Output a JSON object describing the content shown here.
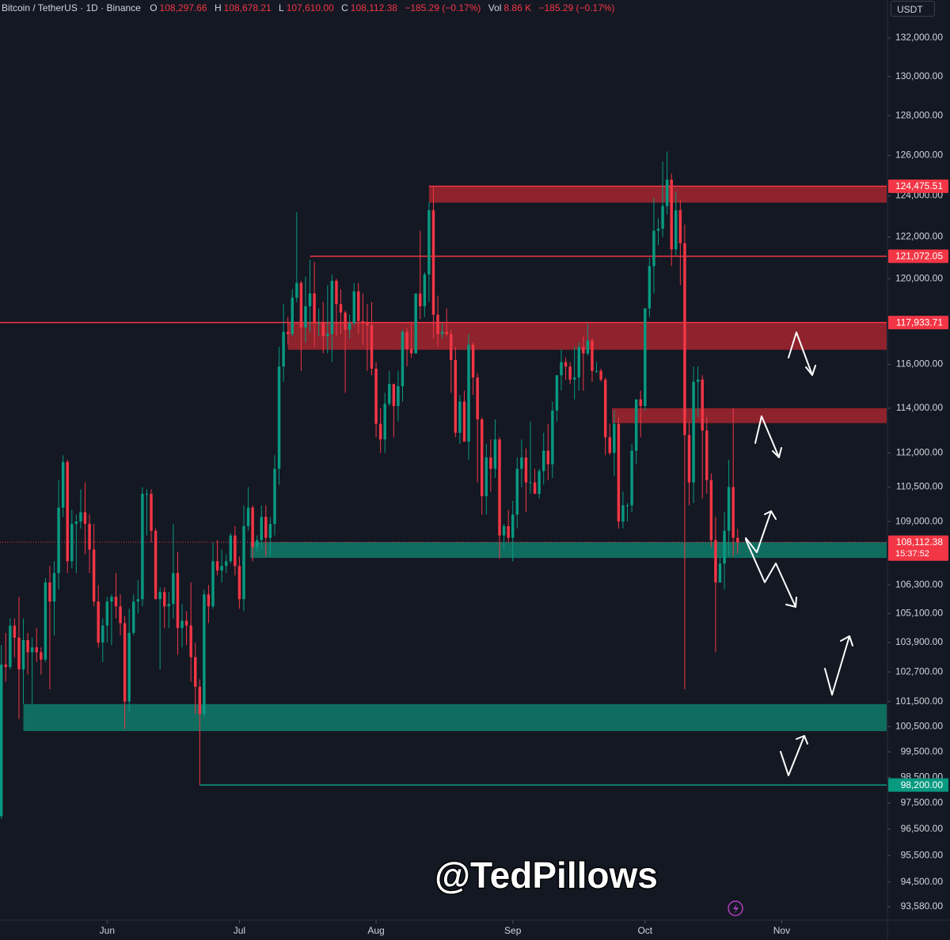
{
  "chart_data": {
    "type": "candlestick",
    "header": {
      "symbol": "Bitcoin / TetherUS · 1D · Binance",
      "fields": [
        {
          "key": "O",
          "value": "108,297.66"
        },
        {
          "key": "H",
          "value": "108,678.21"
        },
        {
          "key": "L",
          "value": "107,610.00"
        },
        {
          "key": "C",
          "value": "108,112.38"
        }
      ],
      "change": "−185.29 (−0.17%)",
      "volume": {
        "key": "Vol",
        "value": "8.86 K",
        "change": "−185.29 (−0.17%)"
      }
    },
    "currency": "USDT",
    "watermark": "@TedPillows",
    "log_scale": true,
    "up_color": "#089981",
    "down_color": "#f23645",
    "ylim": [
      93170,
      134000
    ],
    "xlim": [
      -0.3,
      200.8
    ],
    "xticks": [
      {
        "value": 24,
        "label": "Jun"
      },
      {
        "value": 54,
        "label": "Jul"
      },
      {
        "value": 85,
        "label": "Aug"
      },
      {
        "value": 116,
        "label": "Sep"
      },
      {
        "value": 146,
        "label": "Oct"
      },
      {
        "value": 177,
        "label": "Nov"
      }
    ],
    "yticks": [
      {
        "value": 132000,
        "label": "132,000.00"
      },
      {
        "value": 130000,
        "label": "130,000.00"
      },
      {
        "value": 128000,
        "label": "128,000.00"
      },
      {
        "value": 126000,
        "label": "126,000.00"
      },
      {
        "value": 124000,
        "label": "124,000.00"
      },
      {
        "value": 122000,
        "label": "122,000.00"
      },
      {
        "value": 120000,
        "label": "120,000.00"
      },
      {
        "value": 116000,
        "label": "116,000.00"
      },
      {
        "value": 114000,
        "label": "114,000.00"
      },
      {
        "value": 112000,
        "label": "112,000.00"
      },
      {
        "value": 110500,
        "label": "110,500.00"
      },
      {
        "value": 109000,
        "label": "109,000.00"
      },
      {
        "value": 106300,
        "label": "106,300.00"
      },
      {
        "value": 105100,
        "label": "105,100.00"
      },
      {
        "value": 103900,
        "label": "103,900.00"
      },
      {
        "value": 102700,
        "label": "102,700.00"
      },
      {
        "value": 101500,
        "label": "101,500.00"
      },
      {
        "value": 100500,
        "label": "100,500.00"
      },
      {
        "value": 99500,
        "label": "99,500.00"
      },
      {
        "value": 98500,
        "label": "98,500.00"
      },
      {
        "value": 97500,
        "label": "97,500.00"
      },
      {
        "value": 96500,
        "label": "96,500.00"
      },
      {
        "value": 95500,
        "label": "95,500.00"
      },
      {
        "value": 94500,
        "label": "94,500.00"
      },
      {
        "value": 93580,
        "label": "93,580.00"
      }
    ],
    "candles": {
      "open": [
        97000,
        103000,
        102900,
        104600,
        104100,
        102800,
        104000,
        103500,
        103700,
        103500,
        103200,
        106400,
        105600,
        106800,
        109600,
        111600,
        107300,
        108900,
        109000,
        109400,
        108900,
        107800,
        105600,
        103900,
        104600,
        105600,
        105800,
        105400,
        104700,
        101500,
        104300,
        105600,
        105700,
        110200,
        110200,
        108600,
        105700,
        106000,
        105400,
        105500,
        106800,
        104500,
        104800,
        104600,
        103300,
        102100,
        101000,
        105900,
        105400,
        107300,
        106900,
        107100,
        107300,
        108400,
        107100,
        105700,
        108800,
        109600,
        107900,
        108200,
        109200,
        108300,
        108900,
        111300,
        115900,
        117500,
        117400,
        119100,
        119800,
        117700,
        118700,
        119300,
        117900,
        117900,
        117300,
        117400,
        119900,
        118800,
        118400,
        117600,
        117900,
        119400,
        118000,
        117900,
        117800,
        115800,
        113300,
        112600,
        114200,
        115100,
        114100,
        115000,
        117500,
        116700,
        116500,
        119300,
        118700,
        120200,
        123300,
        118300,
        117400,
        117500,
        117400,
        116200,
        112900,
        114300,
        112500,
        116900,
        115400,
        113500,
        110100,
        111800,
        111300,
        112600,
        108400,
        108800,
        108300,
        109300,
        111300,
        111800,
        110700,
        110700,
        110200,
        111200,
        112100,
        111500,
        113900,
        115500,
        116100,
        115900,
        115300,
        115400,
        116800,
        116500,
        117100,
        115700,
        115700,
        115300,
        112700,
        112000,
        113300,
        109000,
        109700,
        109700,
        112100,
        114400,
        114100,
        118600,
        120600,
        122300,
        122400,
        123500,
        124800,
        121400,
        123300,
        121700,
        112800,
        110700,
        115200,
        115300,
        113000,
        110800,
        108200,
        106400,
        107200,
        108600,
        110500,
        108297.66
      ],
      "high": [
        103800,
        104300,
        104900,
        104900,
        105800,
        104900,
        104300,
        104100,
        104500,
        103700,
        106600,
        107100,
        107300,
        110800,
        111900,
        111700,
        109500,
        109300,
        110400,
        110700,
        109300,
        108900,
        106300,
        104900,
        105800,
        105900,
        106800,
        105900,
        105000,
        105300,
        105900,
        106500,
        110500,
        110400,
        110400,
        108700,
        106200,
        106200,
        106000,
        108900,
        107700,
        105500,
        105200,
        106400,
        103900,
        102400,
        106100,
        106300,
        108100,
        108200,
        107800,
        107600,
        108500,
        108800,
        107500,
        109700,
        110500,
        109700,
        108400,
        109700,
        109700,
        109200,
        111900,
        116800,
        118800,
        118200,
        119500,
        123200,
        119900,
        120100,
        120900,
        120800,
        118600,
        118900,
        119700,
        120200,
        120000,
        119500,
        118500,
        118300,
        119800,
        119800,
        119300,
        118800,
        118900,
        116100,
        114000,
        114700,
        115700,
        115100,
        115700,
        117600,
        117700,
        117900,
        119300,
        122300,
        120300,
        123700,
        124475.51,
        119200,
        117900,
        118600,
        117600,
        116800,
        114600,
        114800,
        117400,
        117000,
        115600,
        113600,
        112400,
        112600,
        113500,
        112700,
        108900,
        109500,
        109900,
        111800,
        112600,
        112200,
        113400,
        111300,
        111300,
        112900,
        113300,
        114300,
        115500,
        116700,
        116300,
        116100,
        116800,
        117000,
        117300,
        117900,
        117200,
        116100,
        115800,
        115400,
        113300,
        113900,
        113600,
        110300,
        109800,
        112400,
        114400,
        114800,
        118600,
        121000,
        123900,
        122900,
        125700,
        126200,
        125100,
        124200,
        123800,
        122600,
        113400,
        115900,
        115900,
        115500,
        113600,
        111100,
        109200,
        107500,
        109400,
        111700,
        114000,
        108678.21
      ],
      "low": [
        96900,
        102300,
        102800,
        103300,
        100800,
        101400,
        102600,
        101400,
        103100,
        102600,
        103100,
        102000,
        104200,
        106100,
        109200,
        106800,
        107000,
        106800,
        108700,
        107600,
        106800,
        105400,
        103700,
        103100,
        103900,
        103800,
        104900,
        104200,
        100400,
        101100,
        104200,
        105100,
        105400,
        108400,
        108100,
        105700,
        102800,
        104500,
        104500,
        104900,
        103400,
        103700,
        103800,
        102300,
        101000,
        98200,
        100900,
        104700,
        105300,
        106700,
        106400,
        106800,
        107200,
        106700,
        105300,
        105200,
        108600,
        107300,
        107700,
        107800,
        107500,
        107500,
        108400,
        110600,
        115200,
        116900,
        117300,
        118900,
        115700,
        117000,
        117500,
        116800,
        117300,
        116500,
        116500,
        116100,
        117300,
        117400,
        114700,
        117200,
        117800,
        117400,
        116900,
        115700,
        115500,
        112700,
        112000,
        112000,
        114100,
        112700,
        113400,
        114300,
        115900,
        116300,
        116500,
        118100,
        118200,
        118900,
        117200,
        116800,
        117200,
        117300,
        114700,
        112700,
        112400,
        112600,
        111700,
        114600,
        110700,
        109300,
        109300,
        110300,
        110900,
        107400,
        107800,
        108100,
        107300,
        108700,
        110500,
        109400,
        110200,
        110200,
        110000,
        110600,
        110800,
        110900,
        113400,
        114800,
        115300,
        115100,
        114400,
        114800,
        114800,
        116400,
        115200,
        115600,
        115200,
        111900,
        111900,
        111000,
        108700,
        108700,
        109000,
        109400,
        111500,
        112700,
        113900,
        118200,
        119300,
        121600,
        122000,
        123100,
        120600,
        121100,
        119700,
        102000,
        109700,
        109800,
        113600,
        110000,
        110200,
        107900,
        103500,
        106400,
        106100,
        107500,
        107500,
        107610
      ],
      "close": [
        103000,
        102900,
        104600,
        104100,
        102800,
        104000,
        103500,
        103700,
        103500,
        103200,
        106400,
        105600,
        106800,
        109600,
        111600,
        107300,
        108900,
        109000,
        109400,
        108900,
        107800,
        105600,
        103900,
        104600,
        105600,
        105800,
        105400,
        104700,
        101500,
        104300,
        105600,
        105700,
        110200,
        110200,
        108600,
        105700,
        106000,
        105400,
        105500,
        106800,
        104500,
        104800,
        104600,
        103300,
        102100,
        101000,
        105900,
        105400,
        107300,
        106900,
        107100,
        107300,
        108400,
        107100,
        105700,
        108800,
        109600,
        107900,
        108200,
        109200,
        108300,
        108900,
        111300,
        115900,
        117500,
        117400,
        119100,
        119800,
        117700,
        118700,
        119300,
        117900,
        117900,
        117300,
        117400,
        119900,
        118800,
        118400,
        117600,
        117900,
        119400,
        118000,
        117900,
        117800,
        115800,
        113300,
        112600,
        114200,
        115100,
        114100,
        115000,
        117500,
        116700,
        116500,
        119300,
        118700,
        120200,
        123300,
        118300,
        117400,
        117500,
        117400,
        116200,
        112900,
        114300,
        112500,
        116900,
        115400,
        113500,
        110100,
        111800,
        111300,
        112600,
        108400,
        108800,
        108300,
        109300,
        111300,
        111800,
        110700,
        110700,
        110200,
        111200,
        112100,
        111500,
        113900,
        115500,
        116100,
        115900,
        115300,
        115400,
        116800,
        116500,
        117100,
        115700,
        115700,
        115300,
        112700,
        112000,
        113300,
        109000,
        109700,
        109700,
        112100,
        114400,
        114100,
        118600,
        120600,
        122300,
        122400,
        123500,
        124800,
        121400,
        123300,
        121700,
        112800,
        110700,
        115200,
        115300,
        113000,
        110800,
        108200,
        106400,
        107200,
        108600,
        110500,
        108300,
        108112.38
      ]
    },
    "zones": [
      {
        "top": 124475.51,
        "bottom": 123670,
        "from": 97,
        "color": "#a3262f"
      },
      {
        "top": 117933.71,
        "bottom": 116670,
        "from": 65,
        "color": "#a3262f"
      },
      {
        "top": 114000,
        "bottom": 113330,
        "from": 138.5,
        "color": "#a3262f"
      },
      {
        "top": 108112.38,
        "bottom": 107440,
        "from": 56.5,
        "color": "#0e7d6b"
      },
      {
        "top": 101400,
        "bottom": 100320,
        "from": 5,
        "color": "#0e7d6b"
      }
    ],
    "levels": [
      {
        "value": 124475.51,
        "label": "124,475.51",
        "color": "#f23645",
        "from": 97
      },
      {
        "value": 121072.05,
        "label": "121,072.05",
        "color": "#f23645",
        "from": 70
      },
      {
        "value": 117933.71,
        "label": "117,933.71",
        "color": "#f23645",
        "from": -0.3
      },
      {
        "value": 108112.38,
        "label": "108,112.38",
        "color": "#f23645",
        "from": -0.3,
        "style": "dotted",
        "countdown": "15:37:52"
      },
      {
        "value": 98200,
        "label": "98,200.00",
        "color": "#089981",
        "from": 45
      }
    ]
  }
}
